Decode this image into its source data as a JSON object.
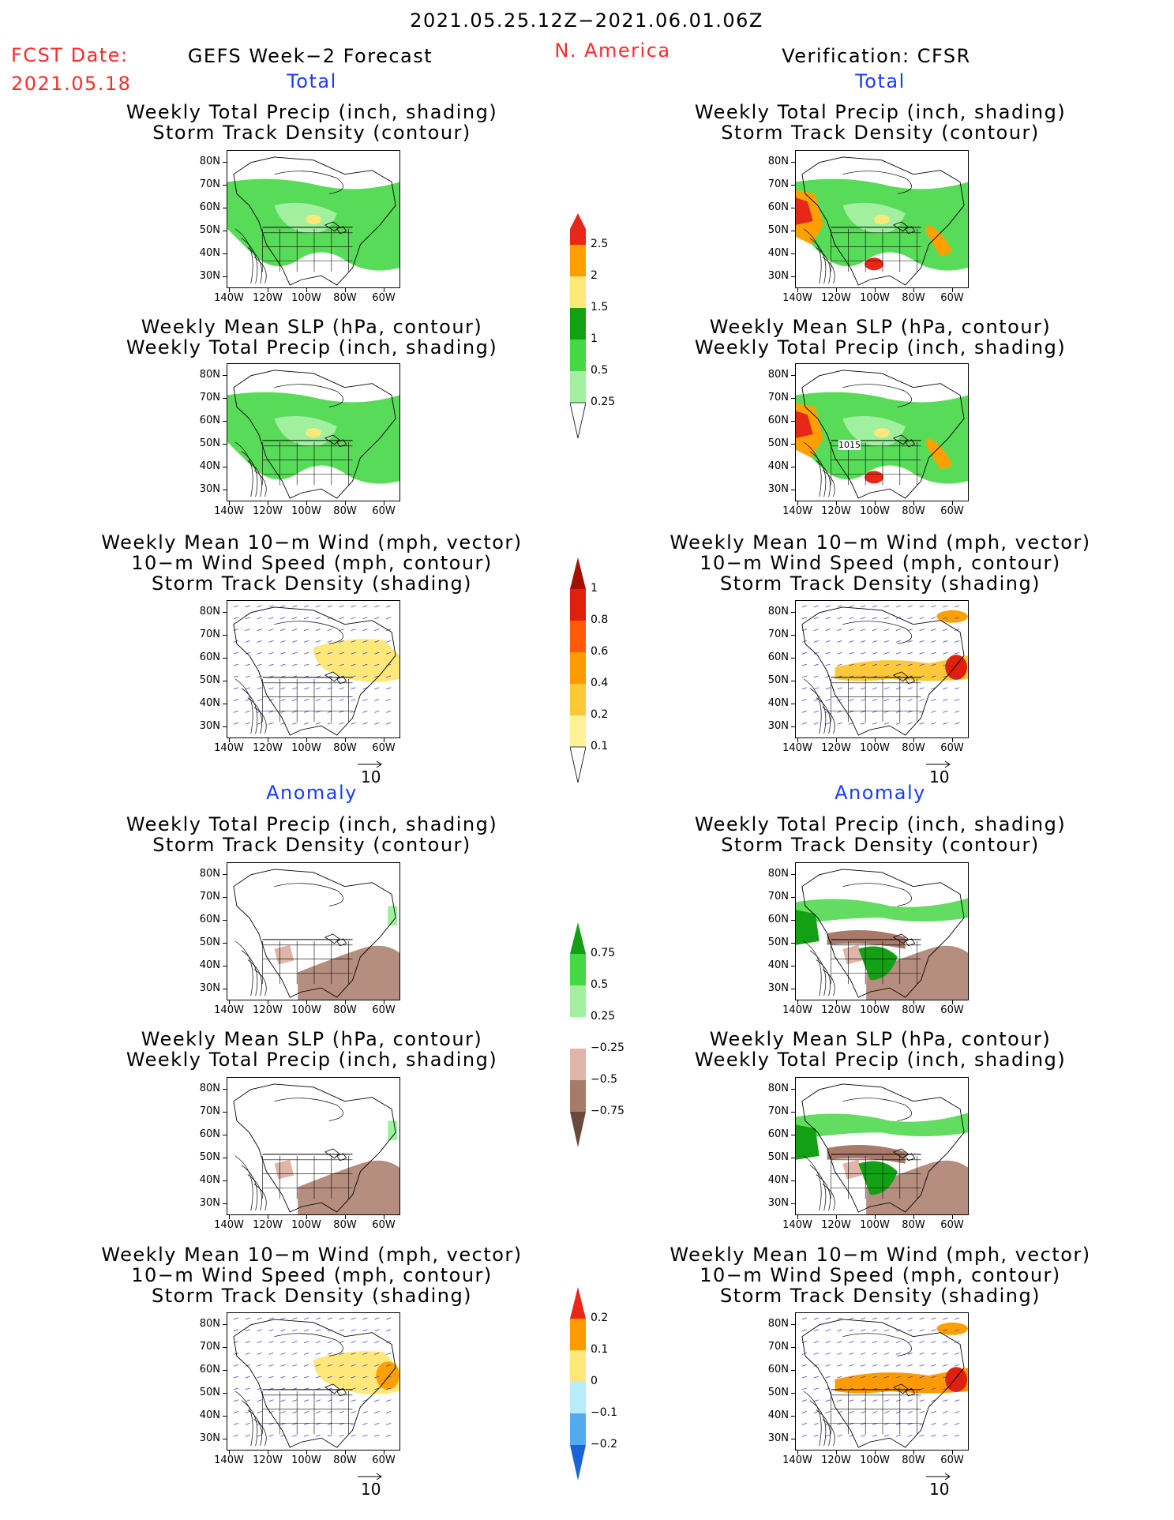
{
  "header": {
    "period": "2021.05.25.12Z−2021.06.01.06Z",
    "fcst_label": "FCST Date:",
    "fcst_date": "2021.05.18",
    "forecast_title": "GEFS Week−2 Forecast",
    "region": "N. America",
    "verification": "Verification: CFSR"
  },
  "sections": {
    "total": "Total",
    "anomaly": "Anomaly"
  },
  "panel_titles": {
    "precip_storm": [
      "Weekly Total Precip (inch, shading)",
      "Storm Track Density (contour)"
    ],
    "slp_precip": [
      "Weekly Mean SLP (hPa, contour)",
      "Weekly Total Precip (inch, shading)"
    ],
    "wind_storm": [
      "Weekly Mean 10−m Wind (mph, vector)",
      "10−m Wind Speed (mph, contour)",
      "Storm Track Density (shading)"
    ]
  },
  "axes": {
    "lat_labels": [
      "80N",
      "70N",
      "60N",
      "50N",
      "40N",
      "30N"
    ],
    "lon_labels": [
      "140W",
      "120W",
      "100W",
      "80W",
      "60W"
    ]
  },
  "vector_ref": "10",
  "contour_label": "1015",
  "colorbars": {
    "precip_total": {
      "labels": [
        "2.5",
        "2",
        "1.5",
        "1",
        "0.5",
        "0.25"
      ],
      "colors": [
        "#e8261a",
        "#ffa000",
        "#ffe87a",
        "#14a014",
        "#46d746",
        "#a0f0a0"
      ]
    },
    "storm_total": {
      "labels": [
        "1",
        "0.8",
        "0.6",
        "0.4",
        "0.2",
        "0.1"
      ],
      "colors": [
        "#a50f00",
        "#e0200a",
        "#ff5a0a",
        "#ff9a00",
        "#ffc837",
        "#fff09a"
      ]
    },
    "precip_anom": {
      "labels": [
        "0.75",
        "0.5",
        "0.25",
        "−0.25",
        "−0.5",
        "−0.75"
      ],
      "colors_pos": [
        "#14a014",
        "#46d746",
        "#a0f0a0"
      ],
      "colors_neg": [
        "#e0b4a8",
        "#a87a6a",
        "#6b4a3e"
      ]
    },
    "storm_anom": {
      "labels": [
        "0.2",
        "0.1",
        "0",
        "−0.1",
        "−0.2"
      ],
      "colors": [
        "#e8261a",
        "#ff9a00",
        "#ffe87a",
        "#b8ecfa",
        "#55aaee",
        "#1a64d8"
      ]
    }
  }
}
